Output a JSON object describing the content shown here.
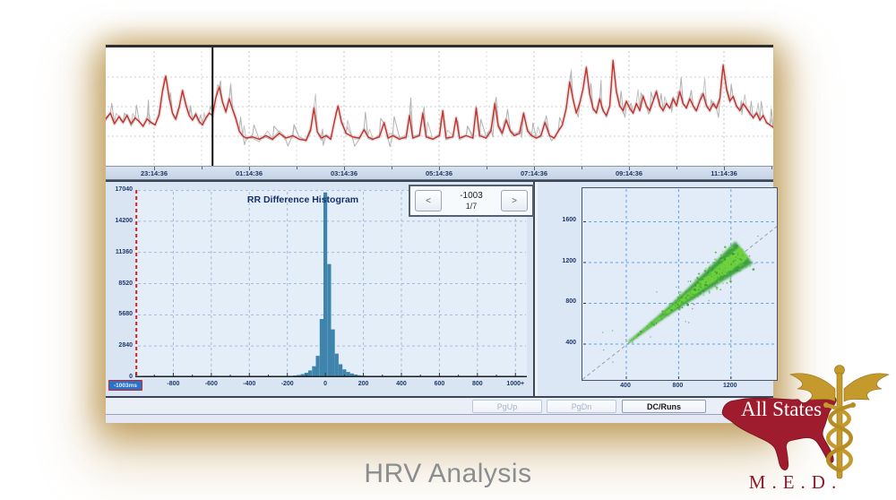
{
  "page": {
    "caption": "HRV Analysis"
  },
  "histogram_nav": {
    "prev": "<",
    "next": ">",
    "value": "-1003",
    "page": "1/7",
    "badge": "-1003ms"
  },
  "buttons": [
    {
      "label": "PgUp",
      "enabled": false
    },
    {
      "label": "PgDn",
      "enabled": false
    },
    {
      "label": "DC/Runs",
      "enabled": true
    }
  ],
  "logo": {
    "title": "All States",
    "subtitle": "M.E.D.",
    "map_color": "#9e1c2e",
    "gold": "#c49a2c"
  },
  "colors": {
    "bar_blue": "#3e84ad",
    "trace_red": "#c9302c",
    "trace_gray": "#a8a8a8",
    "grid_blue": "#9db5d6",
    "poincare_grid": "#4d94e0",
    "panel_blue": "#d9e5f3",
    "navy_text": "#20386b",
    "badge_blue": "#2a72c8",
    "axis_red": "#d42020",
    "caption_gray": "#8b8d90"
  },
  "chart_data": [
    {
      "type": "line",
      "name": "heart-rate-tachogram",
      "x_tick_labels": [
        "23:14:36",
        "01:14:36",
        "03:14:36",
        "05:14:36",
        "07:14:36",
        "09:14:36",
        "11:14:36"
      ],
      "ylabel": "",
      "cursor_x_pct": 16,
      "note": "red smoothed heart-rate trend over gray raw beat-to-beat trace; y axis unlabeled, values are percent of plot height",
      "series": [
        {
          "name": "smoothed-hr",
          "color": "#c9302c",
          "points": [
            [
              0,
              40
            ],
            [
              0.7,
              45
            ],
            [
              1.3,
              36
            ],
            [
              2,
              42
            ],
            [
              2.6,
              37
            ],
            [
              3.2,
              43
            ],
            [
              3.8,
              36
            ],
            [
              4.4,
              41
            ],
            [
              5,
              38
            ],
            [
              5.6,
              34
            ],
            [
              6.2,
              40
            ],
            [
              6.8,
              37
            ],
            [
              7.4,
              35
            ],
            [
              8,
              44
            ],
            [
              8.5,
              63
            ],
            [
              9,
              76
            ],
            [
              9.5,
              58
            ],
            [
              10,
              45
            ],
            [
              10.5,
              40
            ],
            [
              11,
              50
            ],
            [
              11.5,
              64
            ],
            [
              12,
              52
            ],
            [
              12.5,
              43
            ],
            [
              13,
              39
            ],
            [
              13.5,
              44
            ],
            [
              14,
              38
            ],
            [
              14.5,
              35
            ],
            [
              15,
              41
            ],
            [
              15.5,
              45
            ],
            [
              16,
              43
            ],
            [
              16.5,
              58
            ],
            [
              17,
              67
            ],
            [
              17.5,
              54
            ],
            [
              18,
              46
            ],
            [
              18.5,
              57
            ],
            [
              19,
              48
            ],
            [
              19.5,
              40
            ],
            [
              20,
              30
            ],
            [
              20.5,
              26
            ],
            [
              21,
              24
            ],
            [
              22,
              25
            ],
            [
              23,
              23
            ],
            [
              24,
              26
            ],
            [
              25,
              23
            ],
            [
              26,
              28
            ],
            [
              27,
              24
            ],
            [
              28,
              26
            ],
            [
              29,
              23
            ],
            [
              30,
              22
            ],
            [
              30.7,
              31
            ],
            [
              31.2,
              49
            ],
            [
              31.7,
              29
            ],
            [
              32.3,
              24
            ],
            [
              33,
              26
            ],
            [
              33.7,
              23
            ],
            [
              34.3,
              39
            ],
            [
              34.8,
              51
            ],
            [
              35.3,
              38
            ],
            [
              36,
              28
            ],
            [
              37,
              25
            ],
            [
              38,
              24
            ],
            [
              38.7,
              31
            ],
            [
              39.3,
              25
            ],
            [
              40,
              23
            ],
            [
              41,
              25
            ],
            [
              41.7,
              37
            ],
            [
              42.3,
              24
            ],
            [
              43,
              26
            ],
            [
              44,
              23
            ],
            [
              45,
              25
            ],
            [
              45.5,
              43
            ],
            [
              46,
              24
            ],
            [
              47,
              26
            ],
            [
              47.5,
              45
            ],
            [
              48,
              25
            ],
            [
              49,
              23
            ],
            [
              50,
              26
            ],
            [
              50.5,
              47
            ],
            [
              51,
              24
            ],
            [
              52,
              25
            ],
            [
              52.5,
              41
            ],
            [
              53,
              24
            ],
            [
              54,
              26
            ],
            [
              55,
              24
            ],
            [
              55.5,
              49
            ],
            [
              56,
              26
            ],
            [
              57,
              24
            ],
            [
              57.7,
              30
            ],
            [
              58.3,
              53
            ],
            [
              58.8,
              34
            ],
            [
              59.4,
              28
            ],
            [
              60,
              39
            ],
            [
              60.6,
              30
            ],
            [
              61.2,
              26
            ],
            [
              62,
              28
            ],
            [
              62.6,
              45
            ],
            [
              63.2,
              30
            ],
            [
              63.8,
              26
            ],
            [
              64.5,
              24
            ],
            [
              65.2,
              26
            ],
            [
              65.8,
              37
            ],
            [
              66.5,
              26
            ],
            [
              67.2,
              24
            ],
            [
              67.8,
              30
            ],
            [
              68.4,
              35
            ],
            [
              69,
              49
            ],
            [
              69.5,
              71
            ],
            [
              70,
              57
            ],
            [
              70.5,
              45
            ],
            [
              71,
              53
            ],
            [
              71.5,
              65
            ],
            [
              72,
              83
            ],
            [
              72.5,
              61
            ],
            [
              73,
              49
            ],
            [
              73.5,
              45
            ],
            [
              74,
              57
            ],
            [
              74.5,
              47
            ],
            [
              75,
              43
            ],
            [
              75.5,
              51
            ],
            [
              76,
              89
            ],
            [
              76.5,
              63
            ],
            [
              77,
              51
            ],
            [
              77.5,
              47
            ],
            [
              78,
              55
            ],
            [
              78.5,
              49
            ],
            [
              79,
              45
            ],
            [
              79.5,
              53
            ],
            [
              80,
              47
            ],
            [
              80.5,
              59
            ],
            [
              81,
              51
            ],
            [
              81.5,
              47
            ],
            [
              82,
              55
            ],
            [
              82.5,
              63
            ],
            [
              83,
              51
            ],
            [
              83.5,
              47
            ],
            [
              84,
              53
            ],
            [
              84.5,
              49
            ],
            [
              85,
              57
            ],
            [
              85.5,
              51
            ],
            [
              86,
              63
            ],
            [
              86.5,
              53
            ],
            [
              87,
              49
            ],
            [
              87.5,
              57
            ],
            [
              88,
              51
            ],
            [
              88.5,
              47
            ],
            [
              89,
              55
            ],
            [
              89.5,
              61
            ],
            [
              90,
              51
            ],
            [
              90.5,
              47
            ],
            [
              91,
              53
            ],
            [
              91.5,
              49
            ],
            [
              92,
              57
            ],
            [
              92.5,
              85
            ],
            [
              93,
              65
            ],
            [
              93.5,
              55
            ],
            [
              94,
              59
            ],
            [
              94.5,
              51
            ],
            [
              95,
              47
            ],
            [
              95.5,
              53
            ],
            [
              96,
              49
            ],
            [
              96.5,
              45
            ],
            [
              97,
              41
            ],
            [
              97.5,
              45
            ],
            [
              98,
              39
            ],
            [
              98.5,
              43
            ],
            [
              99,
              37
            ],
            [
              99.5,
              35
            ],
            [
              100,
              33
            ]
          ]
        },
        {
          "name": "raw-hr",
          "color": "#a8a8a8"
        }
      ]
    },
    {
      "type": "bar",
      "name": "rr-difference-histogram",
      "title": "RR Difference Histogram",
      "x_unit": "ms",
      "x_range": [
        -1000,
        1060
      ],
      "y_range": [
        0,
        17040
      ],
      "y_ticks": [
        "17040",
        "14200",
        "11360",
        "8520",
        "5680",
        "2840",
        "0"
      ],
      "x_ticks": [
        "-800",
        "-600",
        "-400",
        "-200",
        "0",
        "200",
        "400",
        "600",
        "800",
        "1000+"
      ],
      "bar_width_ms": 20,
      "noise_floor_count": 60,
      "color": "#3e84ad",
      "bars": [
        [
          -980,
          45
        ],
        [
          -940,
          35
        ],
        [
          -900,
          50
        ],
        [
          -860,
          38
        ],
        [
          -820,
          48
        ],
        [
          -780,
          40
        ],
        [
          -740,
          55
        ],
        [
          -700,
          42
        ],
        [
          -660,
          95
        ],
        [
          -620,
          50
        ],
        [
          -580,
          130
        ],
        [
          -540,
          60
        ],
        [
          -500,
          95
        ],
        [
          -460,
          58
        ],
        [
          -440,
          70
        ],
        [
          -420,
          52
        ],
        [
          -400,
          62
        ],
        [
          -380,
          48
        ],
        [
          -360,
          58
        ],
        [
          -340,
          45
        ],
        [
          -320,
          52
        ],
        [
          -300,
          62
        ],
        [
          -280,
          48
        ],
        [
          -260,
          58
        ],
        [
          -240,
          68
        ],
        [
          -220,
          80
        ],
        [
          -200,
          98
        ],
        [
          -180,
          118
        ],
        [
          -160,
          155
        ],
        [
          -140,
          205
        ],
        [
          -120,
          285
        ],
        [
          -100,
          410
        ],
        [
          -80,
          620
        ],
        [
          -60,
          1000
        ],
        [
          -40,
          1950
        ],
        [
          -20,
          5300
        ],
        [
          0,
          16800
        ],
        [
          20,
          10300
        ],
        [
          40,
          4350
        ],
        [
          60,
          2150
        ],
        [
          80,
          1180
        ],
        [
          100,
          720
        ],
        [
          120,
          480
        ],
        [
          140,
          340
        ],
        [
          160,
          245
        ],
        [
          180,
          180
        ],
        [
          200,
          135
        ],
        [
          220,
          105
        ],
        [
          240,
          88
        ],
        [
          260,
          72
        ],
        [
          280,
          62
        ],
        [
          300,
          56
        ],
        [
          320,
          50
        ],
        [
          340,
          46
        ],
        [
          360,
          56
        ],
        [
          380,
          46
        ],
        [
          400,
          52
        ],
        [
          440,
          46
        ],
        [
          480,
          62
        ],
        [
          520,
          46
        ],
        [
          560,
          56
        ],
        [
          600,
          46
        ],
        [
          640,
          56
        ],
        [
          680,
          46
        ],
        [
          720,
          56
        ],
        [
          760,
          46
        ],
        [
          800,
          56
        ],
        [
          840,
          46
        ],
        [
          880,
          56
        ],
        [
          920,
          46
        ],
        [
          960,
          56
        ],
        [
          1000,
          72
        ],
        [
          1040,
          52
        ]
      ]
    },
    {
      "type": "scatter",
      "name": "poincare-plot",
      "x_ticks": [
        "400",
        "800",
        "1200"
      ],
      "y_ticks": [
        "1600",
        "1200",
        "800",
        "400"
      ],
      "x_range": [
        70,
        1550
      ],
      "y_range": [
        48,
        1930
      ],
      "identity_line": true,
      "cluster": {
        "from_ms": 420,
        "to_ms": 1300,
        "max_half_width_ms": 110,
        "color_core": "#72d33c",
        "color_outer": "#2f9a2f",
        "note": "dense green RR(n) vs RR(n+1) cloud elongated along identity diagonal"
      }
    }
  ]
}
